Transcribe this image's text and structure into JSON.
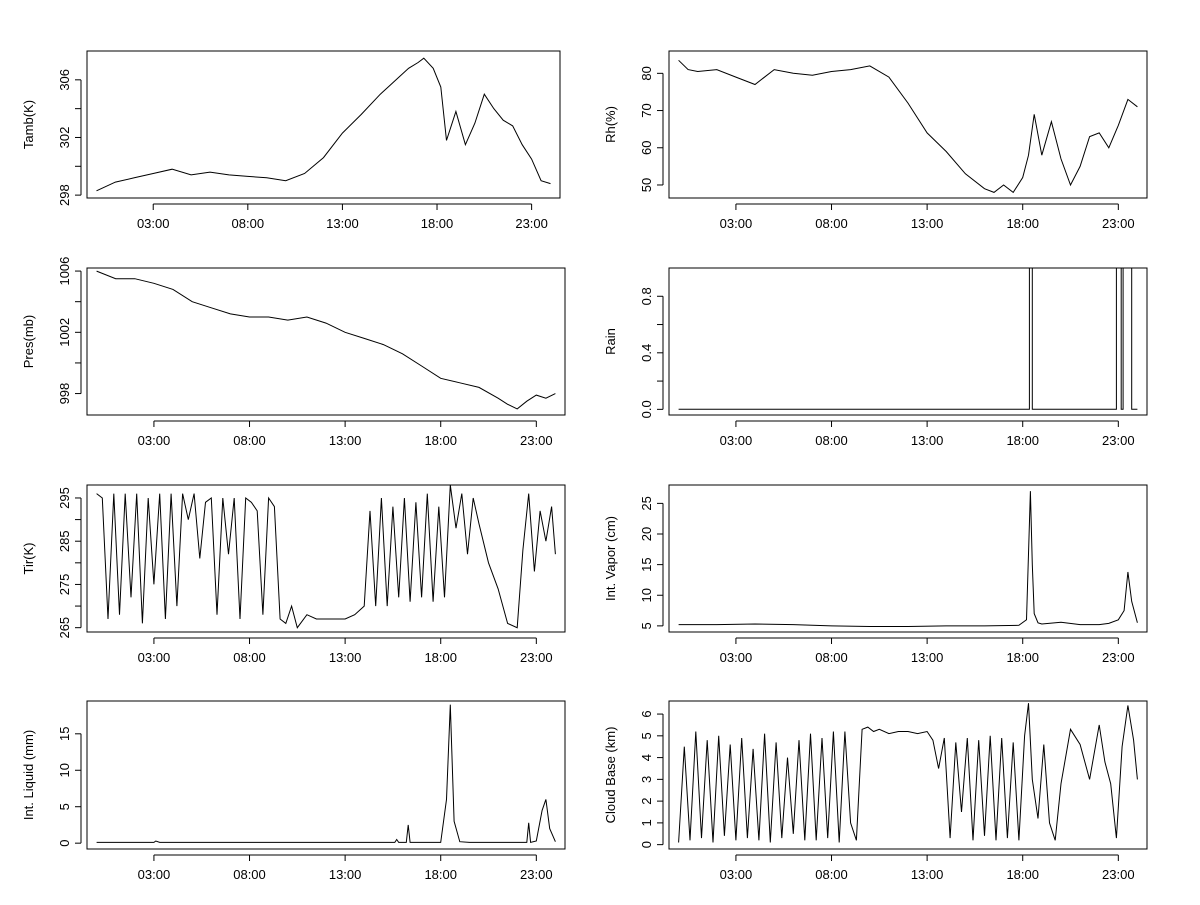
{
  "chart_data": [
    {
      "type": "line",
      "ylabel": "Tamb(K)",
      "xlabel": "",
      "xlim": [
        -0.5,
        24.5
      ],
      "ylim": [
        297.8,
        308.0
      ],
      "xticks": [
        {
          "x": 3,
          "label": "03:00"
        },
        {
          "x": 8,
          "label": "08:00"
        },
        {
          "x": 13,
          "label": "13:00"
        },
        {
          "x": 18,
          "label": "18:00"
        },
        {
          "x": 23,
          "label": "23:00"
        }
      ],
      "yticks": [
        298,
        300,
        302,
        304,
        306
      ],
      "ytick_labels": [
        "298",
        "",
        "302",
        "",
        "306"
      ],
      "series": [
        {
          "x": [
            0,
            1,
            2,
            3,
            4,
            5,
            6,
            7,
            8,
            9,
            10,
            11,
            12,
            13,
            14,
            15,
            15.5,
            16,
            16.5,
            17,
            17.3,
            17.8,
            18.2,
            18.5,
            19,
            19.5,
            20,
            20.5,
            21,
            21.5,
            22,
            22.5,
            23,
            23.5,
            24
          ],
          "y": [
            298.3,
            298.9,
            299.2,
            299.5,
            299.8,
            299.4,
            299.6,
            299.4,
            299.3,
            299.2,
            299.0,
            299.5,
            300.6,
            302.3,
            303.6,
            305.0,
            305.6,
            306.2,
            306.8,
            307.2,
            307.5,
            306.8,
            305.5,
            301.8,
            303.8,
            301.5,
            303.0,
            305.0,
            304.0,
            303.2,
            302.8,
            301.5,
            300.5,
            299.0,
            298.8
          ]
        }
      ]
    },
    {
      "type": "line",
      "ylabel": "Rh(%)",
      "xlabel": "",
      "xlim": [
        -0.5,
        24.5
      ],
      "ylim": [
        46.5,
        86.0
      ],
      "xticks": [
        {
          "x": 3,
          "label": "03:00"
        },
        {
          "x": 8,
          "label": "08:00"
        },
        {
          "x": 13,
          "label": "13:00"
        },
        {
          "x": 18,
          "label": "18:00"
        },
        {
          "x": 23,
          "label": "23:00"
        }
      ],
      "yticks": [
        50,
        60,
        70,
        80
      ],
      "ytick_labels": [
        "50",
        "60",
        "70",
        "80"
      ],
      "series": [
        {
          "x": [
            0,
            0.5,
            1,
            2,
            3,
            4,
            5,
            6,
            7,
            8,
            9,
            10,
            11,
            12,
            13,
            14,
            15,
            16,
            16.5,
            17,
            17.5,
            18,
            18.3,
            18.6,
            19,
            19.5,
            20,
            20.5,
            21,
            21.5,
            22,
            22.5,
            23,
            23.5,
            24
          ],
          "y": [
            83.5,
            81.0,
            80.5,
            81.0,
            79.0,
            77.0,
            81.0,
            80.0,
            79.5,
            80.5,
            81.0,
            82.0,
            79.0,
            72.0,
            64.0,
            59.0,
            53.0,
            49.0,
            48.0,
            50.0,
            48.0,
            52.0,
            58.0,
            69.0,
            58.0,
            67.0,
            57.0,
            50.0,
            55.0,
            63.0,
            64.0,
            60.0,
            66.0,
            73.0,
            71.0
          ]
        }
      ]
    },
    {
      "type": "line",
      "ylabel": "Pres(mb)",
      "xlabel": "",
      "xlim": [
        -0.5,
        24.5
      ],
      "ylim": [
        996.6,
        1006.2
      ],
      "xticks": [
        {
          "x": 3,
          "label": "03:00"
        },
        {
          "x": 8,
          "label": "08:00"
        },
        {
          "x": 13,
          "label": "13:00"
        },
        {
          "x": 18,
          "label": "18:00"
        },
        {
          "x": 23,
          "label": "23:00"
        }
      ],
      "yticks": [
        998,
        1000,
        1002,
        1004,
        1006
      ],
      "ytick_labels": [
        "998",
        "",
        "1002",
        "",
        "1006"
      ],
      "series": [
        {
          "x": [
            0,
            1,
            2,
            3,
            4,
            5,
            6,
            7,
            8,
            9,
            10,
            11,
            12,
            13,
            14,
            15,
            16,
            17,
            18,
            19,
            20,
            21,
            21.5,
            22,
            22.5,
            23,
            23.5,
            24
          ],
          "y": [
            1006.0,
            1005.5,
            1005.5,
            1005.2,
            1004.8,
            1004.0,
            1003.6,
            1003.2,
            1003.0,
            1003.0,
            1002.8,
            1003.0,
            1002.6,
            1002.0,
            1001.6,
            1001.2,
            1000.6,
            999.8,
            999.0,
            998.7,
            998.4,
            997.7,
            997.3,
            997.0,
            997.5,
            997.9,
            997.7,
            998.0
          ]
        }
      ]
    },
    {
      "type": "line",
      "ylabel": "Rain",
      "xlabel": "",
      "xlim": [
        -0.5,
        24.5
      ],
      "ylim": [
        -0.04,
        1.0
      ],
      "xticks": [
        {
          "x": 3,
          "label": "03:00"
        },
        {
          "x": 8,
          "label": "08:00"
        },
        {
          "x": 13,
          "label": "13:00"
        },
        {
          "x": 18,
          "label": "18:00"
        },
        {
          "x": 23,
          "label": "23:00"
        }
      ],
      "yticks": [
        0.0,
        0.2,
        0.4,
        0.6,
        0.8
      ],
      "ytick_labels": [
        "0.0",
        "",
        "0.4",
        "",
        "0.8"
      ],
      "series": [
        {
          "x": [
            0,
            18.35,
            18.35,
            18.5,
            18.5,
            22.9,
            22.9,
            23.15,
            23.15,
            23.25,
            23.25,
            23.7,
            23.7,
            24
          ],
          "y": [
            0,
            0,
            1,
            1,
            0,
            0,
            1,
            1,
            0,
            0,
            1,
            1,
            0,
            0
          ]
        }
      ]
    },
    {
      "type": "line",
      "ylabel": "Tir(K)",
      "xlabel": "",
      "xlim": [
        -0.5,
        24.5
      ],
      "ylim": [
        264.0,
        298.0
      ],
      "xticks": [
        {
          "x": 3,
          "label": "03:00"
        },
        {
          "x": 8,
          "label": "08:00"
        },
        {
          "x": 13,
          "label": "13:00"
        },
        {
          "x": 18,
          "label": "18:00"
        },
        {
          "x": 23,
          "label": "23:00"
        }
      ],
      "yticks": [
        265,
        270,
        275,
        280,
        285,
        290,
        295
      ],
      "ytick_labels": [
        "265",
        "",
        "275",
        "",
        "285",
        "",
        "295"
      ],
      "series": [
        {
          "x": [
            0,
            0.3,
            0.6,
            0.9,
            1.2,
            1.5,
            1.8,
            2.1,
            2.4,
            2.7,
            3.0,
            3.3,
            3.6,
            3.9,
            4.2,
            4.5,
            4.8,
            5.1,
            5.4,
            5.7,
            6.0,
            6.3,
            6.6,
            6.9,
            7.2,
            7.5,
            7.8,
            8.1,
            8.4,
            8.7,
            9.0,
            9.3,
            9.6,
            9.9,
            10.2,
            10.5,
            11,
            11.5,
            12,
            12.5,
            13,
            13.5,
            14,
            14.3,
            14.6,
            14.9,
            15.2,
            15.5,
            15.8,
            16.1,
            16.4,
            16.7,
            17.0,
            17.3,
            17.6,
            17.9,
            18.2,
            18.5,
            18.8,
            19.1,
            19.4,
            19.7,
            20.0,
            20.5,
            21.0,
            21.5,
            22.0,
            22.3,
            22.6,
            22.9,
            23.2,
            23.5,
            23.8,
            24
          ],
          "y": [
            296,
            295,
            267,
            296,
            268,
            296,
            272,
            296,
            266,
            295,
            275,
            296,
            267,
            296,
            270,
            296,
            290,
            296,
            281,
            294,
            295,
            268,
            295,
            282,
            295,
            267,
            295,
            294,
            292,
            268,
            295,
            293,
            267,
            266,
            270,
            265,
            268,
            267,
            267,
            267,
            267,
            268,
            270,
            292,
            270,
            295,
            270,
            293,
            272,
            295,
            271,
            294,
            272,
            296,
            271,
            293,
            272,
            298,
            288,
            296,
            282,
            295,
            289,
            280,
            274,
            266,
            265,
            283,
            296,
            278,
            292,
            285,
            293,
            282
          ]
        }
      ]
    },
    {
      "type": "line",
      "ylabel": "Int. Vapor (cm)",
      "xlabel": "",
      "xlim": [
        -0.5,
        24.5
      ],
      "ylim": [
        4.0,
        28.0
      ],
      "xticks": [
        {
          "x": 3,
          "label": "03:00"
        },
        {
          "x": 8,
          "label": "08:00"
        },
        {
          "x": 13,
          "label": "13:00"
        },
        {
          "x": 18,
          "label": "18:00"
        },
        {
          "x": 23,
          "label": "23:00"
        }
      ],
      "yticks": [
        5,
        10,
        15,
        20,
        25
      ],
      "ytick_labels": [
        "5",
        "10",
        "15",
        "20",
        "25"
      ],
      "series": [
        {
          "x": [
            0,
            2,
            4,
            6,
            8,
            10,
            12,
            14,
            16,
            17.8,
            18.2,
            18.4,
            18.5,
            18.6,
            18.8,
            19,
            20,
            21,
            22,
            22.5,
            23,
            23.3,
            23.5,
            23.7,
            24
          ],
          "y": [
            5.2,
            5.2,
            5.3,
            5.2,
            5.0,
            4.9,
            4.9,
            5.0,
            5.0,
            5.1,
            6.0,
            27.0,
            15.0,
            7.0,
            5.5,
            5.3,
            5.6,
            5.2,
            5.2,
            5.4,
            6.0,
            7.5,
            13.8,
            9.0,
            5.5
          ]
        }
      ]
    },
    {
      "type": "line",
      "ylabel": "Int. Liquid (mm)",
      "xlabel": "",
      "xlim": [
        -0.5,
        24.5
      ],
      "ylim": [
        -0.8,
        19.5
      ],
      "xticks": [
        {
          "x": 3,
          "label": "03:00"
        },
        {
          "x": 8,
          "label": "08:00"
        },
        {
          "x": 13,
          "label": "13:00"
        },
        {
          "x": 18,
          "label": "18:00"
        },
        {
          "x": 23,
          "label": "23:00"
        }
      ],
      "yticks": [
        0,
        5,
        10,
        15
      ],
      "ytick_labels": [
        "0",
        "5",
        "10",
        "15"
      ],
      "series": [
        {
          "x": [
            0,
            2,
            3,
            3.1,
            3.3,
            3.5,
            6,
            8,
            12,
            15.6,
            15.7,
            15.8,
            16.2,
            16.3,
            16.4,
            18.0,
            18.3,
            18.5,
            18.7,
            19.0,
            19.5,
            21.5,
            22.5,
            22.6,
            22.7,
            23.0,
            23.3,
            23.5,
            23.7,
            24
          ],
          "y": [
            0.1,
            0.1,
            0.1,
            0.3,
            0.1,
            0.1,
            0.1,
            0.1,
            0.1,
            0.1,
            0.5,
            0.1,
            0.1,
            2.5,
            0.1,
            0.1,
            6.0,
            19.0,
            3.0,
            0.2,
            0.1,
            0.1,
            0.1,
            2.8,
            0.1,
            0.3,
            4.5,
            6.0,
            2.0,
            0.2
          ]
        }
      ]
    },
    {
      "type": "line",
      "ylabel": "Cloud Base (km)",
      "xlabel": "",
      "xlim": [
        -0.5,
        24.5
      ],
      "ylim": [
        -0.2,
        6.6
      ],
      "xticks": [
        {
          "x": 3,
          "label": "03:00"
        },
        {
          "x": 8,
          "label": "08:00"
        },
        {
          "x": 13,
          "label": "13:00"
        },
        {
          "x": 18,
          "label": "18:00"
        },
        {
          "x": 23,
          "label": "23:00"
        }
      ],
      "yticks": [
        0,
        1,
        2,
        3,
        4,
        5,
        6
      ],
      "ytick_labels": [
        "0",
        "1",
        "2",
        "3",
        "4",
        "5",
        "6"
      ],
      "series": [
        {
          "x": [
            0,
            0.3,
            0.6,
            0.9,
            1.2,
            1.5,
            1.8,
            2.1,
            2.4,
            2.7,
            3.0,
            3.3,
            3.6,
            3.9,
            4.2,
            4.5,
            4.8,
            5.1,
            5.4,
            5.7,
            6.0,
            6.3,
            6.6,
            6.9,
            7.2,
            7.5,
            7.8,
            8.1,
            8.4,
            8.7,
            9.0,
            9.3,
            9.6,
            9.9,
            10.2,
            10.5,
            11,
            11.5,
            12,
            12.5,
            13,
            13.3,
            13.6,
            13.9,
            14.2,
            14.5,
            14.8,
            15.1,
            15.4,
            15.7,
            16.0,
            16.3,
            16.6,
            16.9,
            17.2,
            17.5,
            17.8,
            18.1,
            18.3,
            18.5,
            18.8,
            19.1,
            19.4,
            19.7,
            20.0,
            20.5,
            21.0,
            21.5,
            22.0,
            22.3,
            22.6,
            22.9,
            23.2,
            23.5,
            23.8,
            24
          ],
          "y": [
            0.1,
            4.5,
            0.2,
            5.2,
            0.3,
            4.8,
            0.1,
            5.0,
            0.4,
            4.6,
            0.2,
            4.9,
            0.3,
            4.4,
            0.2,
            5.1,
            0.1,
            4.7,
            0.3,
            4.0,
            0.5,
            4.8,
            0.2,
            5.1,
            0.2,
            4.9,
            0.3,
            5.2,
            0.1,
            5.2,
            1.0,
            0.2,
            5.3,
            5.4,
            5.2,
            5.3,
            5.1,
            5.2,
            5.2,
            5.1,
            5.2,
            4.8,
            3.5,
            4.9,
            0.3,
            4.7,
            1.5,
            4.9,
            0.2,
            4.8,
            0.4,
            5.0,
            0.2,
            4.9,
            0.3,
            4.7,
            0.2,
            5.0,
            6.5,
            3.0,
            1.2,
            4.6,
            1.0,
            0.2,
            2.8,
            5.3,
            4.6,
            3.0,
            5.5,
            3.8,
            2.8,
            0.3,
            4.5,
            6.4,
            4.8,
            3.0
          ]
        }
      ]
    }
  ]
}
